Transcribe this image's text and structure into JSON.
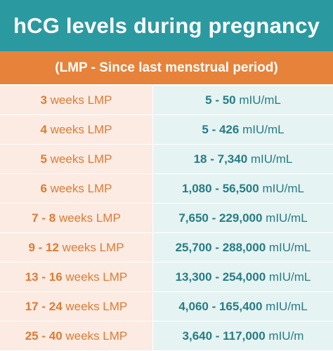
{
  "header": {
    "title": "hCG levels during pregnancy",
    "subtitle": "(LMP - Since last menstrual period)"
  },
  "colors": {
    "title_bar": "#2a9aa0",
    "subtitle_bar": "#e7823a",
    "left_cell_bg": "#fcebe2",
    "right_cell_bg": "#e6f3f3",
    "left_text": "#de7b33",
    "right_text": "#267d83"
  },
  "rows": [
    {
      "weeks": "3",
      "unit_label": "weeks LMP",
      "range": "5 - 50",
      "unit": "mIU/mL"
    },
    {
      "weeks": "4",
      "unit_label": "weeks LMP",
      "range": "5 - 426",
      "unit": "mIU/mL"
    },
    {
      "weeks": "5",
      "unit_label": "weeks LMP",
      "range": "18 - 7,340",
      "unit": "mIU/mL"
    },
    {
      "weeks": "6",
      "unit_label": "weeks LMP",
      "range": "1,080 - 56,500",
      "unit": "mIU/mL"
    },
    {
      "weeks": "7 - 8",
      "unit_label": "weeks LMP",
      "range": "7,650 - 229,000",
      "unit": "mIU/mL"
    },
    {
      "weeks": "9 - 12",
      "unit_label": "weeks LMP",
      "range": "25,700 - 288,000",
      "unit": "mIU/mL"
    },
    {
      "weeks": "13 - 16",
      "unit_label": "weeks LMP",
      "range": "13,300 - 254,000",
      "unit": "mIU/mL"
    },
    {
      "weeks": "17 - 24",
      "unit_label": "weeks LMP",
      "range": "4,060 - 165,400",
      "unit": "mIU/mL"
    },
    {
      "weeks": "25 - 40",
      "unit_label": "weeks LMP",
      "range": "3,640 - 117,000",
      "unit": "mIU/m"
    }
  ]
}
